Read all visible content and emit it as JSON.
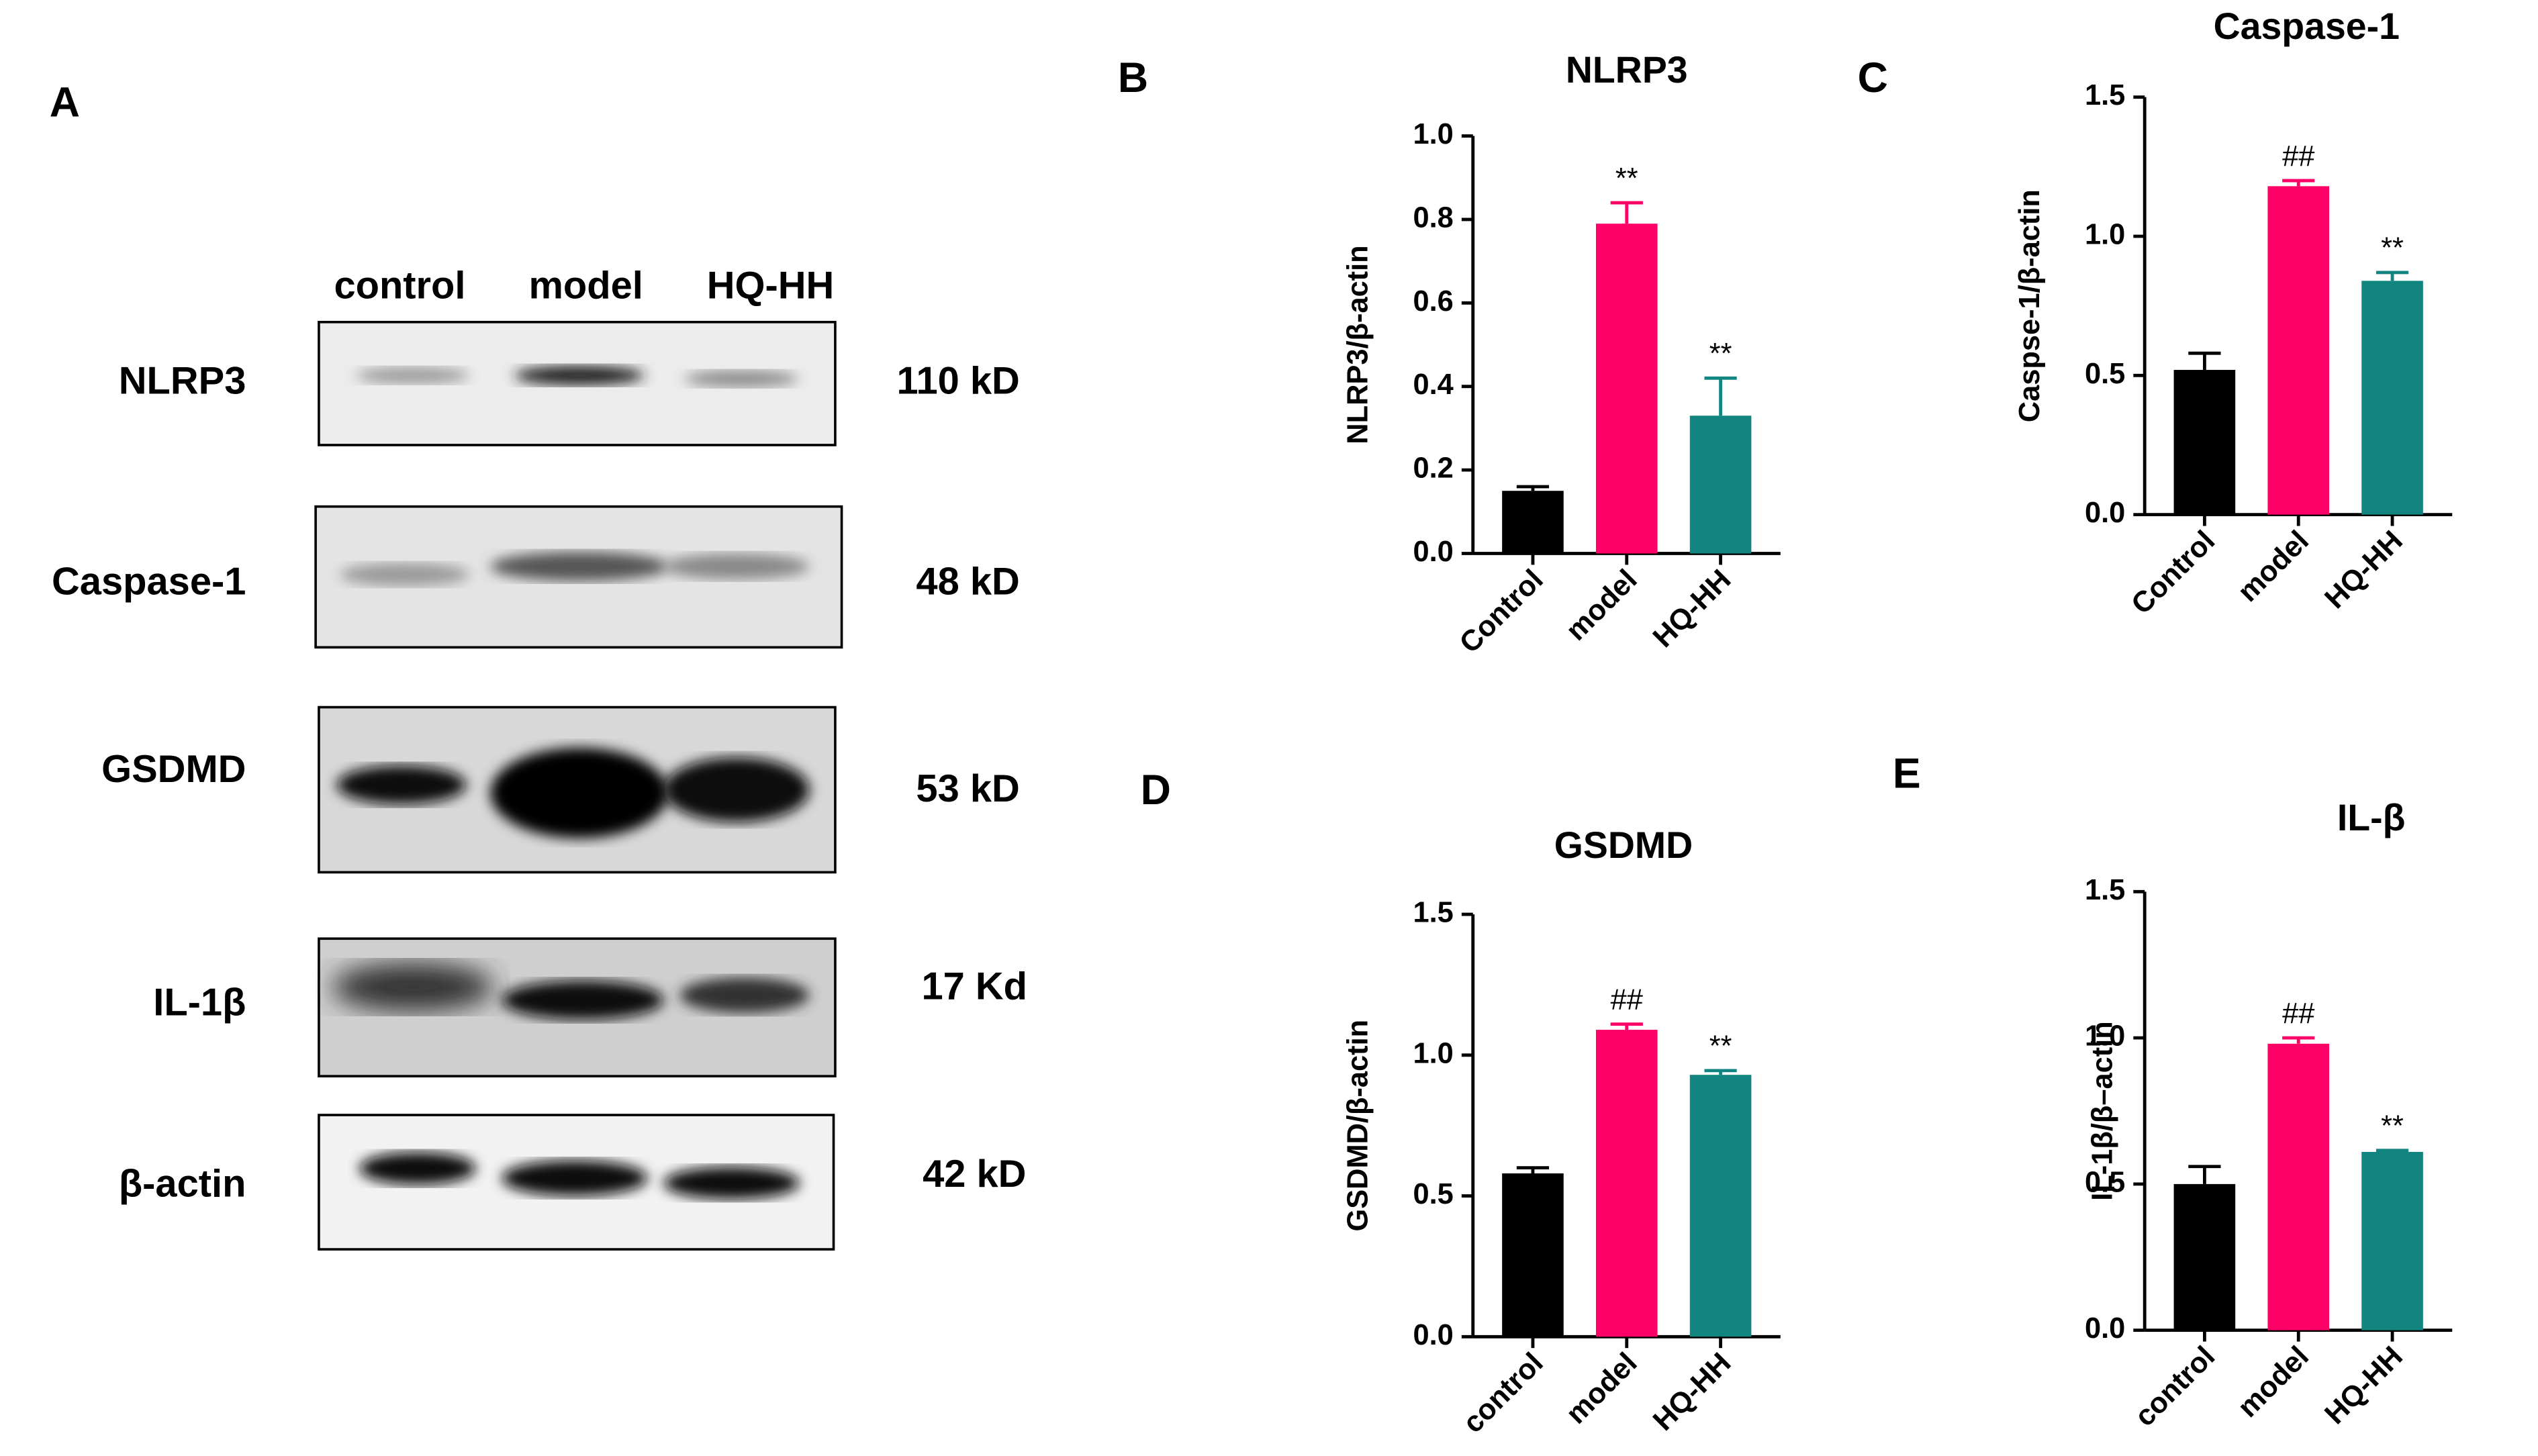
{
  "blot": {
    "panel": "A",
    "lanes": [
      "control",
      "model",
      "HQ-HH"
    ],
    "rows": [
      {
        "protein": "NLRP3",
        "size": "110 kD"
      },
      {
        "protein": "Caspase-1",
        "size": "48 kD"
      },
      {
        "protein": "GSDMD",
        "size": "53 kD"
      },
      {
        "protein": "IL-1β",
        "size": "17 Kd"
      },
      {
        "protein": "β-actin",
        "size": "42 kD"
      }
    ]
  },
  "chart_data": [
    {
      "type": "bar",
      "panel": "B",
      "title": "NLRP3",
      "y_label": "NLRP3/β-actin",
      "categories": [
        "Control",
        "model",
        "HQ-HH"
      ],
      "values": [
        0.15,
        0.79,
        0.33
      ],
      "errors": [
        0.01,
        0.05,
        0.09
      ],
      "annotations": [
        null,
        "**",
        "**"
      ],
      "colors": [
        "#000000",
        "#ff0066",
        "#138580"
      ],
      "ylim": [
        0,
        1
      ],
      "yticks": [
        {
          "value": 0,
          "label": "0.0"
        },
        0.2,
        0.4,
        0.6,
        0.8,
        {
          "value": 1,
          "label": "1.0"
        }
      ]
    },
    {
      "type": "bar",
      "panel": "C",
      "title": "Caspase-1",
      "y_label": "Caspse-1/β-actin",
      "categories": [
        "Control",
        "model",
        "HQ-HH"
      ],
      "values": [
        0.52,
        1.18,
        0.84
      ],
      "errors": [
        0.06,
        0.02,
        0.03
      ],
      "annotations": [
        null,
        "##",
        "**"
      ],
      "colors": [
        "#000000",
        "#ff0066",
        "#138580"
      ],
      "ylim": [
        0,
        1.5
      ],
      "yticks": [
        {
          "value": 0,
          "label": "0.0"
        },
        0.5,
        {
          "value": 1,
          "label": "1.0"
        },
        1.5
      ]
    },
    {
      "type": "bar",
      "panel": "D",
      "title": "GSDMD",
      "y_label": "GSDMD/β-actin",
      "categories": [
        "control",
        "model",
        "HQ-HH"
      ],
      "values": [
        0.58,
        1.09,
        0.93
      ],
      "errors": [
        0.02,
        0.02,
        0.015
      ],
      "annotations": [
        null,
        "##",
        "**"
      ],
      "colors": [
        "#000000",
        "#ff0066",
        "#138580"
      ],
      "ylim": [
        0,
        1.5
      ],
      "yticks": [
        {
          "value": 0,
          "label": "0.0"
        },
        0.5,
        {
          "value": 1,
          "label": "1.0"
        },
        1.5
      ]
    },
    {
      "type": "bar",
      "panel": "E",
      "title": "IL-β",
      "y_label": "IL-1β/β–actin",
      "categories": [
        "control",
        "model",
        "HQ-HH"
      ],
      "values": [
        0.5,
        0.98,
        0.61
      ],
      "errors": [
        0.06,
        0.02,
        0.005
      ],
      "annotations": [
        null,
        "##",
        "**"
      ],
      "colors": [
        "#000000",
        "#ff0066",
        "#138580"
      ],
      "ylim": [
        0,
        1.5
      ],
      "yticks": [
        {
          "value": 0,
          "label": "0.0"
        },
        0.5,
        {
          "value": 1,
          "label": "1.0"
        },
        1.5
      ]
    }
  ]
}
